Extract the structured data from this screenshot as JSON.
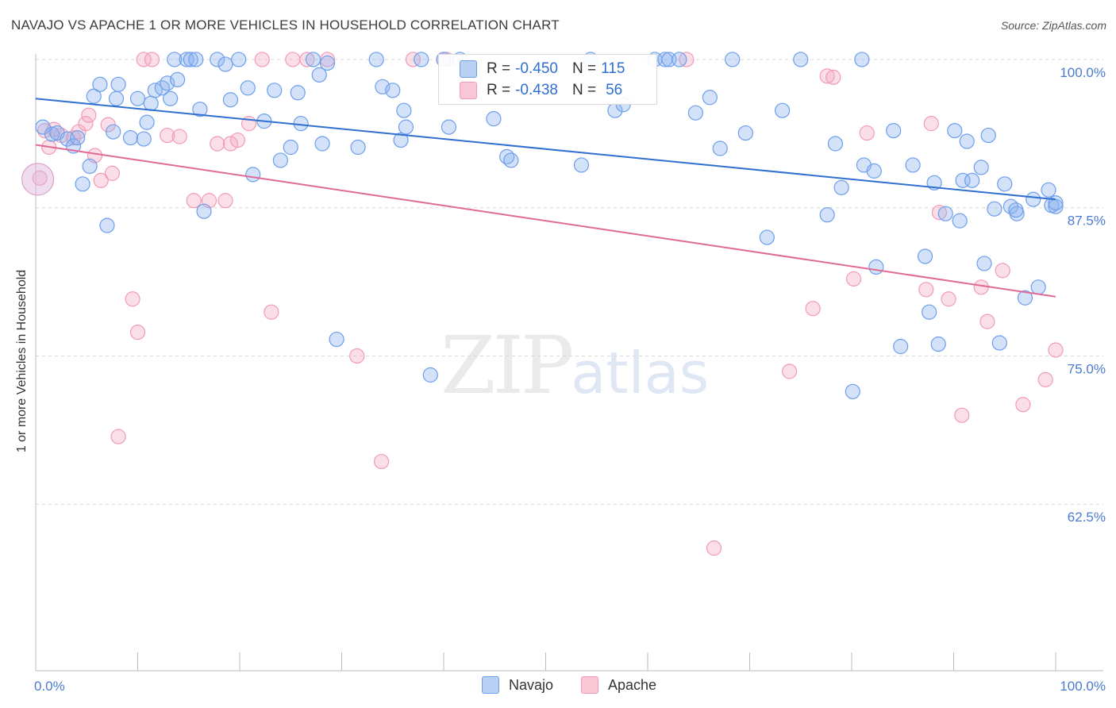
{
  "title": "NAVAJO VS APACHE 1 OR MORE VEHICLES IN HOUSEHOLD CORRELATION CHART",
  "source": "Source: ZipAtlas.com",
  "watermark": {
    "zip": "ZIP",
    "atlas": "atlas"
  },
  "legend": {
    "navajo": {
      "r_label": "R = ",
      "r_value": "-0.450",
      "n_label": "N = ",
      "n_value": "115"
    },
    "apache": {
      "r_label": "R = ",
      "r_value": "-0.438",
      "n_label": "N = ",
      "n_value": "56"
    }
  },
  "bottom_legend": {
    "navajo": "Navajo",
    "apache": "Apache"
  },
  "chart_data": {
    "type": "scatter",
    "title": "NAVAJO VS APACHE 1 OR MORE VEHICLES IN HOUSEHOLD CORRELATION CHART",
    "xlabel": "",
    "ylabel": "1 or more Vehicles in Household",
    "xlim": [
      0,
      100
    ],
    "ylim": [
      50,
      101
    ],
    "x_tick_labels": [
      "0.0%",
      "100.0%"
    ],
    "y_ticks": [
      62.5,
      75.0,
      87.5,
      100.0
    ],
    "y_tick_labels": [
      "62.5%",
      "75.0%",
      "87.5%",
      "100.0%"
    ],
    "colors": {
      "navajo": "#6d9eeb",
      "apache": "#f29ab5",
      "navajo_line": "#2f6fd0",
      "apache_line": "#e06a96"
    },
    "series": [
      {
        "name": "Navajo",
        "trend": {
          "x0": 0,
          "y0": 96.7,
          "x1": 100,
          "y1": 88.2
        },
        "points": [
          [
            0.7,
            94.3
          ],
          [
            1.6,
            93.7
          ],
          [
            2.1,
            93.8
          ],
          [
            3.1,
            93.3
          ],
          [
            3.7,
            92.7
          ],
          [
            4.1,
            93.4
          ],
          [
            4.6,
            89.5
          ],
          [
            5.3,
            91.0
          ],
          [
            5.7,
            96.9
          ],
          [
            6.3,
            97.9
          ],
          [
            7.0,
            86.0
          ],
          [
            7.6,
            93.9
          ],
          [
            7.9,
            96.7
          ],
          [
            8.1,
            97.9
          ],
          [
            9.3,
            93.4
          ],
          [
            10.0,
            96.7
          ],
          [
            10.6,
            93.3
          ],
          [
            10.9,
            94.7
          ],
          [
            11.3,
            96.3
          ],
          [
            11.7,
            97.4
          ],
          [
            12.4,
            97.6
          ],
          [
            12.9,
            98.0
          ],
          [
            13.2,
            96.7
          ],
          [
            13.6,
            100.0
          ],
          [
            13.9,
            98.3
          ],
          [
            14.8,
            100.0
          ],
          [
            15.2,
            100.0
          ],
          [
            15.7,
            100.0
          ],
          [
            16.1,
            95.8
          ],
          [
            16.5,
            87.2
          ],
          [
            17.8,
            100.0
          ],
          [
            18.6,
            99.6
          ],
          [
            19.1,
            96.6
          ],
          [
            19.9,
            100.0
          ],
          [
            20.8,
            97.6
          ],
          [
            21.3,
            90.3
          ],
          [
            22.4,
            94.8
          ],
          [
            23.4,
            97.4
          ],
          [
            24.0,
            91.5
          ],
          [
            25.0,
            92.6
          ],
          [
            25.7,
            97.2
          ],
          [
            26.0,
            94.6
          ],
          [
            27.2,
            100.0
          ],
          [
            27.8,
            98.7
          ],
          [
            28.1,
            92.9
          ],
          [
            28.6,
            99.7
          ],
          [
            29.5,
            76.4
          ],
          [
            31.6,
            92.6
          ],
          [
            33.4,
            100.0
          ],
          [
            34.0,
            97.7
          ],
          [
            35.0,
            97.4
          ],
          [
            35.8,
            93.2
          ],
          [
            36.1,
            95.7
          ],
          [
            36.3,
            94.3
          ],
          [
            37.8,
            100.0
          ],
          [
            38.7,
            73.4
          ],
          [
            40.0,
            100.0
          ],
          [
            40.5,
            94.3
          ],
          [
            41.6,
            100.0
          ],
          [
            44.9,
            95.0
          ],
          [
            46.2,
            91.8
          ],
          [
            46.6,
            91.5
          ],
          [
            53.5,
            91.1
          ],
          [
            54.4,
            100.0
          ],
          [
            56.8,
            95.7
          ],
          [
            57.6,
            96.2
          ],
          [
            60.7,
            100.0
          ],
          [
            61.7,
            100.0
          ],
          [
            62.1,
            100.0
          ],
          [
            63.1,
            100.0
          ],
          [
            64.7,
            95.5
          ],
          [
            66.1,
            96.8
          ],
          [
            67.1,
            92.5
          ],
          [
            68.3,
            100.0
          ],
          [
            69.6,
            93.8
          ],
          [
            71.7,
            85.0
          ],
          [
            73.2,
            95.7
          ],
          [
            75.0,
            100.0
          ],
          [
            77.6,
            86.9
          ],
          [
            78.4,
            92.9
          ],
          [
            79.0,
            89.2
          ],
          [
            80.1,
            72.0
          ],
          [
            81.2,
            91.1
          ],
          [
            82.2,
            90.6
          ],
          [
            84.1,
            94.0
          ],
          [
            84.8,
            75.8
          ],
          [
            86.0,
            91.1
          ],
          [
            87.2,
            83.4
          ],
          [
            87.6,
            78.7
          ],
          [
            88.1,
            89.6
          ],
          [
            88.5,
            76.0
          ],
          [
            89.2,
            87.0
          ],
          [
            90.1,
            94.0
          ],
          [
            90.6,
            86.4
          ],
          [
            90.9,
            89.8
          ],
          [
            91.3,
            93.1
          ],
          [
            91.8,
            89.8
          ],
          [
            92.7,
            90.9
          ],
          [
            93.0,
            82.8
          ],
          [
            93.4,
            93.6
          ],
          [
            94.0,
            87.4
          ],
          [
            94.5,
            76.1
          ],
          [
            95.0,
            89.5
          ],
          [
            95.6,
            87.6
          ],
          [
            96.2,
            87.0
          ],
          [
            97.0,
            79.9
          ],
          [
            97.8,
            88.2
          ],
          [
            98.3,
            80.8
          ],
          [
            99.3,
            89.0
          ],
          [
            99.6,
            87.7
          ],
          [
            100.0,
            87.6
          ],
          [
            81.0,
            100.0
          ],
          [
            100.0,
            87.9
          ],
          [
            96.1,
            87.3
          ],
          [
            82.4,
            82.5
          ]
        ]
      },
      {
        "name": "Apache",
        "trend": {
          "x0": 0,
          "y0": 92.8,
          "x1": 100,
          "y1": 80.0
        },
        "points": [
          [
            0.4,
            90.0
          ],
          [
            0.9,
            94.0
          ],
          [
            1.3,
            92.6
          ],
          [
            1.8,
            94.1
          ],
          [
            2.5,
            93.6
          ],
          [
            3.7,
            93.4
          ],
          [
            4.2,
            93.9
          ],
          [
            4.9,
            94.6
          ],
          [
            5.2,
            95.3
          ],
          [
            5.8,
            91.9
          ],
          [
            6.4,
            89.8
          ],
          [
            7.1,
            94.5
          ],
          [
            7.5,
            90.4
          ],
          [
            8.1,
            68.2
          ],
          [
            9.5,
            79.8
          ],
          [
            10.0,
            77.0
          ],
          [
            10.6,
            100.0
          ],
          [
            11.4,
            100.0
          ],
          [
            12.9,
            93.6
          ],
          [
            14.1,
            93.5
          ],
          [
            15.5,
            88.1
          ],
          [
            17.0,
            88.1
          ],
          [
            17.8,
            92.9
          ],
          [
            18.6,
            88.1
          ],
          [
            19.1,
            92.9
          ],
          [
            19.8,
            93.2
          ],
          [
            20.9,
            94.6
          ],
          [
            22.2,
            100.0
          ],
          [
            23.1,
            78.7
          ],
          [
            25.2,
            100.0
          ],
          [
            26.6,
            100.0
          ],
          [
            28.6,
            100.0
          ],
          [
            31.5,
            75.0
          ],
          [
            33.9,
            66.1
          ],
          [
            37.0,
            100.0
          ],
          [
            40.0,
            100.0
          ],
          [
            40.3,
            100.0
          ],
          [
            63.8,
            100.0
          ],
          [
            66.5,
            58.8
          ],
          [
            73.9,
            73.7
          ],
          [
            76.2,
            79.0
          ],
          [
            77.6,
            98.6
          ],
          [
            78.2,
            98.5
          ],
          [
            80.2,
            81.5
          ],
          [
            81.5,
            93.8
          ],
          [
            87.3,
            80.6
          ],
          [
            87.8,
            94.6
          ],
          [
            88.6,
            87.1
          ],
          [
            89.5,
            79.8
          ],
          [
            90.8,
            70.0
          ],
          [
            92.7,
            80.8
          ],
          [
            93.3,
            77.9
          ],
          [
            94.8,
            82.2
          ],
          [
            96.8,
            70.9
          ],
          [
            99.0,
            73.0
          ],
          [
            100.0,
            75.5
          ]
        ]
      }
    ]
  }
}
